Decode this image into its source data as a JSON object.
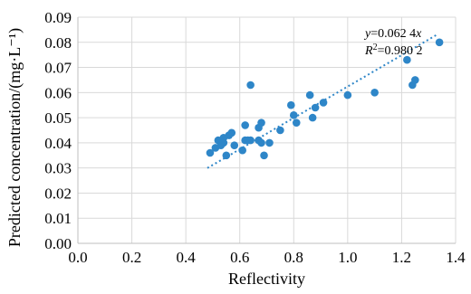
{
  "chart_data": {
    "type": "scatter",
    "title": "",
    "xlabel": "Reflectivity",
    "ylabel": "Predicted concentration/(mg·L⁻¹)",
    "xlim": [
      0.0,
      1.4
    ],
    "ylim": [
      0.0,
      0.09
    ],
    "x_ticks": [
      "0.0",
      "0.2",
      "0.4",
      "0.6",
      "0.8",
      "1.0",
      "1.2",
      "1.4"
    ],
    "y_ticks": [
      "0.00",
      "0.01",
      "0.02",
      "0.03",
      "0.04",
      "0.05",
      "0.06",
      "0.07",
      "0.08",
      "0.09"
    ],
    "grid": true,
    "marker_color": "#2e86c8",
    "trendline_color": "#2e86c8",
    "trendline": {
      "type": "linear-through-origin",
      "slope": 0.0624,
      "x_range": [
        0.48,
        1.33
      ]
    },
    "annotation": {
      "equation_prefix": "y",
      "equation_value": "=0.062 4",
      "equation_var": "x",
      "r2_prefix": "R",
      "r2_sup": "2",
      "r2_value": "=0.980 2"
    },
    "points": [
      {
        "x": 0.49,
        "y": 0.036
      },
      {
        "x": 0.51,
        "y": 0.038
      },
      {
        "x": 0.52,
        "y": 0.041
      },
      {
        "x": 0.53,
        "y": 0.039
      },
      {
        "x": 0.54,
        "y": 0.04
      },
      {
        "x": 0.54,
        "y": 0.042
      },
      {
        "x": 0.55,
        "y": 0.035
      },
      {
        "x": 0.56,
        "y": 0.043
      },
      {
        "x": 0.57,
        "y": 0.044
      },
      {
        "x": 0.58,
        "y": 0.039
      },
      {
        "x": 0.61,
        "y": 0.037
      },
      {
        "x": 0.62,
        "y": 0.047
      },
      {
        "x": 0.62,
        "y": 0.041
      },
      {
        "x": 0.63,
        "y": 0.041
      },
      {
        "x": 0.64,
        "y": 0.041
      },
      {
        "x": 0.64,
        "y": 0.063
      },
      {
        "x": 0.67,
        "y": 0.041
      },
      {
        "x": 0.67,
        "y": 0.046
      },
      {
        "x": 0.68,
        "y": 0.048
      },
      {
        "x": 0.68,
        "y": 0.04
      },
      {
        "x": 0.69,
        "y": 0.035
      },
      {
        "x": 0.71,
        "y": 0.04
      },
      {
        "x": 0.75,
        "y": 0.045
      },
      {
        "x": 0.79,
        "y": 0.055
      },
      {
        "x": 0.8,
        "y": 0.051
      },
      {
        "x": 0.81,
        "y": 0.048
      },
      {
        "x": 0.86,
        "y": 0.059
      },
      {
        "x": 0.87,
        "y": 0.05
      },
      {
        "x": 0.88,
        "y": 0.054
      },
      {
        "x": 0.91,
        "y": 0.056
      },
      {
        "x": 1.0,
        "y": 0.059
      },
      {
        "x": 1.1,
        "y": 0.06
      },
      {
        "x": 1.22,
        "y": 0.073
      },
      {
        "x": 1.24,
        "y": 0.063
      },
      {
        "x": 1.25,
        "y": 0.065
      },
      {
        "x": 1.34,
        "y": 0.08
      }
    ]
  }
}
